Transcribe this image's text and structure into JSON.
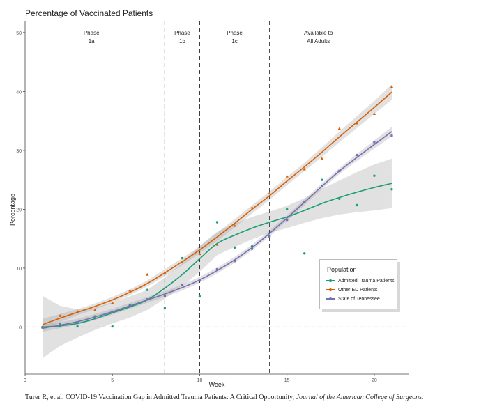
{
  "chart_data": {
    "type": "line",
    "title": "Percentage of Vaccinated Patients",
    "xlabel": "Week",
    "ylabel": "Percentage",
    "xlim": [
      0,
      22
    ],
    "ylim": [
      -8,
      52
    ],
    "x_ticks": [
      0,
      5,
      10,
      15,
      20
    ],
    "y_ticks": [
      0,
      10,
      20,
      30,
      40,
      50
    ],
    "reference_line_y": 0,
    "phase_boundaries": [
      8,
      10,
      14
    ],
    "phases": [
      {
        "line1": "Phase",
        "line2": "1a",
        "x": 3.8
      },
      {
        "line1": "Phase",
        "line2": "1b",
        "x": 9
      },
      {
        "line1": "Phase",
        "line2": "1c",
        "x": 12
      },
      {
        "line1": "Available to",
        "line2": "All Adults",
        "x": 16.8
      }
    ],
    "legend_title": "Population",
    "series": [
      {
        "name": "Admitted Trauma Patients",
        "color": "#1b9e77",
        "marker": "circle",
        "points": [
          [
            1,
            0
          ],
          [
            2,
            0.2
          ],
          [
            3,
            0.1
          ],
          [
            4,
            1.8
          ],
          [
            5,
            0.1
          ],
          [
            6,
            3.6
          ],
          [
            7,
            6.3
          ],
          [
            8,
            3.2
          ],
          [
            9,
            11.7
          ],
          [
            10,
            5.2
          ],
          [
            11,
            17.8
          ],
          [
            12,
            13.5
          ],
          [
            13,
            13.7
          ],
          [
            14,
            15.5
          ],
          [
            15,
            20
          ],
          [
            16,
            12.5
          ],
          [
            17,
            25
          ],
          [
            18,
            21.8
          ],
          [
            19,
            20.7
          ],
          [
            20,
            25.7
          ],
          [
            21,
            23.4
          ]
        ],
        "fit": [
          [
            1,
            0
          ],
          [
            2,
            0.2
          ],
          [
            3,
            0.6
          ],
          [
            4,
            1.4
          ],
          [
            5,
            2.4
          ],
          [
            6,
            3.4
          ],
          [
            7,
            4.6
          ],
          [
            8,
            6.6
          ],
          [
            9,
            8.9
          ],
          [
            10,
            11.6
          ],
          [
            11,
            14.2
          ],
          [
            12,
            15.6
          ],
          [
            13,
            16.8
          ],
          [
            14,
            17.8
          ],
          [
            15,
            18.7
          ],
          [
            16,
            19.8
          ],
          [
            17,
            21.0
          ],
          [
            18,
            22.0
          ],
          [
            19,
            22.9
          ],
          [
            20,
            23.7
          ],
          [
            21,
            24.4
          ]
        ],
        "band": [
          [
            1,
            -5.3,
            5.3
          ],
          [
            2,
            -3.2,
            3.6
          ],
          [
            3,
            -1.8,
            3.0
          ],
          [
            4,
            -0.5,
            3.3
          ],
          [
            5,
            0.6,
            4.2
          ],
          [
            6,
            1.6,
            5.2
          ],
          [
            7,
            2.9,
            6.3
          ],
          [
            8,
            4.8,
            8.4
          ],
          [
            9,
            6.9,
            10.9
          ],
          [
            10,
            9.4,
            13.8
          ],
          [
            11,
            12.2,
            16.2
          ],
          [
            12,
            13.6,
            17.6
          ],
          [
            13,
            14.9,
            18.7
          ],
          [
            14,
            16.0,
            19.6
          ],
          [
            15,
            16.8,
            20.6
          ],
          [
            16,
            17.7,
            21.9
          ],
          [
            17,
            18.5,
            23.5
          ],
          [
            18,
            19.1,
            24.9
          ],
          [
            19,
            19.5,
            26.3
          ],
          [
            20,
            19.8,
            27.6
          ],
          [
            21,
            20.2,
            28.6
          ]
        ]
      },
      {
        "name": "Other ED Patients",
        "color": "#d95f02",
        "marker": "triangle",
        "points": [
          [
            1,
            0
          ],
          [
            2,
            1.9
          ],
          [
            3,
            2.6
          ],
          [
            4,
            2.9
          ],
          [
            5,
            4.1
          ],
          [
            6,
            6.2
          ],
          [
            7,
            8.9
          ],
          [
            8,
            9.2
          ],
          [
            9,
            11.0
          ],
          [
            10,
            12.4
          ],
          [
            11,
            14
          ],
          [
            12,
            17.2
          ],
          [
            13,
            20.3
          ],
          [
            14,
            22.7
          ],
          [
            15,
            25.6
          ],
          [
            16,
            26.8
          ],
          [
            17,
            28.6
          ],
          [
            18,
            33.7
          ],
          [
            19,
            34.6
          ],
          [
            20,
            36.2
          ],
          [
            21,
            40.8
          ]
        ],
        "fit": [
          [
            1,
            0.4
          ],
          [
            2,
            1.5
          ],
          [
            3,
            2.5
          ],
          [
            4,
            3.5
          ],
          [
            5,
            4.6
          ],
          [
            6,
            5.9
          ],
          [
            7,
            7.4
          ],
          [
            8,
            9.2
          ],
          [
            9,
            11.1
          ],
          [
            10,
            13.1
          ],
          [
            11,
            15.3
          ],
          [
            12,
            17.6
          ],
          [
            13,
            20.0
          ],
          [
            14,
            22.3
          ],
          [
            15,
            24.8
          ],
          [
            16,
            27.2
          ],
          [
            17,
            29.7
          ],
          [
            18,
            32.3
          ],
          [
            19,
            34.8
          ],
          [
            20,
            37.3
          ],
          [
            21,
            39.9
          ]
        ],
        "band": [
          [
            1,
            -0.6,
            1.4
          ],
          [
            2,
            0.8,
            2.2
          ],
          [
            3,
            2.0,
            3.0
          ],
          [
            4,
            3.0,
            4.0
          ],
          [
            5,
            4.1,
            5.1
          ],
          [
            6,
            5.4,
            6.4
          ],
          [
            7,
            6.9,
            7.9
          ],
          [
            8,
            8.6,
            9.8
          ],
          [
            9,
            10.5,
            11.7
          ],
          [
            10,
            12.5,
            13.7
          ],
          [
            11,
            14.6,
            16.0
          ],
          [
            12,
            16.9,
            18.3
          ],
          [
            13,
            19.3,
            20.7
          ],
          [
            14,
            21.6,
            23.0
          ],
          [
            15,
            24.1,
            25.5
          ],
          [
            16,
            26.5,
            27.9
          ],
          [
            17,
            28.9,
            30.5
          ],
          [
            18,
            31.4,
            33.2
          ],
          [
            19,
            33.8,
            35.8
          ],
          [
            20,
            36.2,
            38.4
          ],
          [
            21,
            38.6,
            41.2
          ]
        ]
      },
      {
        "name": "State of Tennessee",
        "color": "#7570b3",
        "marker": "square",
        "points": [
          [
            1,
            -0.1
          ],
          [
            2,
            0.5
          ],
          [
            3,
            0.8
          ],
          [
            4,
            1.6
          ],
          [
            5,
            2.6
          ],
          [
            6,
            3.7
          ],
          [
            7,
            4.7
          ],
          [
            8,
            5.3
          ],
          [
            9,
            7.2
          ],
          [
            10,
            8.0
          ],
          [
            11,
            9.8
          ],
          [
            12,
            11.2
          ],
          [
            13,
            13.3
          ],
          [
            14,
            15.4
          ],
          [
            15,
            18.2
          ],
          [
            16,
            21.2
          ],
          [
            17,
            24
          ],
          [
            18,
            26.5
          ],
          [
            19,
            29.2
          ],
          [
            20,
            31.4
          ],
          [
            21,
            32.5
          ]
        ],
        "fit": [
          [
            1,
            -0.2
          ],
          [
            2,
            0.3
          ],
          [
            3,
            0.9
          ],
          [
            4,
            1.7
          ],
          [
            5,
            2.6
          ],
          [
            6,
            3.6
          ],
          [
            7,
            4.6
          ],
          [
            8,
            5.6
          ],
          [
            9,
            6.7
          ],
          [
            10,
            8.0
          ],
          [
            11,
            9.6
          ],
          [
            12,
            11.4
          ],
          [
            13,
            13.5
          ],
          [
            14,
            15.9
          ],
          [
            15,
            18.5
          ],
          [
            16,
            21.2
          ],
          [
            17,
            23.9
          ],
          [
            18,
            26.5
          ],
          [
            19,
            28.8
          ],
          [
            20,
            31.0
          ],
          [
            21,
            33.2
          ]
        ],
        "band": [
          [
            1,
            -0.8,
            0.4
          ],
          [
            2,
            -0.2,
            0.8
          ],
          [
            3,
            0.4,
            1.4
          ],
          [
            4,
            1.2,
            2.2
          ],
          [
            5,
            2.1,
            3.1
          ],
          [
            6,
            3.1,
            4.1
          ],
          [
            7,
            4.1,
            5.1
          ],
          [
            8,
            5.1,
            6.1
          ],
          [
            9,
            6.2,
            7.2
          ],
          [
            10,
            7.5,
            8.5
          ],
          [
            11,
            9.1,
            10.1
          ],
          [
            12,
            10.9,
            11.9
          ],
          [
            13,
            13.0,
            14.0
          ],
          [
            14,
            15.4,
            16.4
          ],
          [
            15,
            18.0,
            19.0
          ],
          [
            16,
            20.7,
            21.7
          ],
          [
            17,
            23.4,
            24.4
          ],
          [
            18,
            26.0,
            27.0
          ],
          [
            19,
            28.2,
            29.4
          ],
          [
            20,
            30.3,
            31.7
          ],
          [
            21,
            32.4,
            34.0
          ]
        ]
      }
    ]
  },
  "citation": {
    "author_text": "Turer R, et al. COVID-19 Vaccination Gap in Admitted Trauma Patients: A Critical Opportunity,",
    "journal": "Journal of the American College of Surgeons."
  }
}
